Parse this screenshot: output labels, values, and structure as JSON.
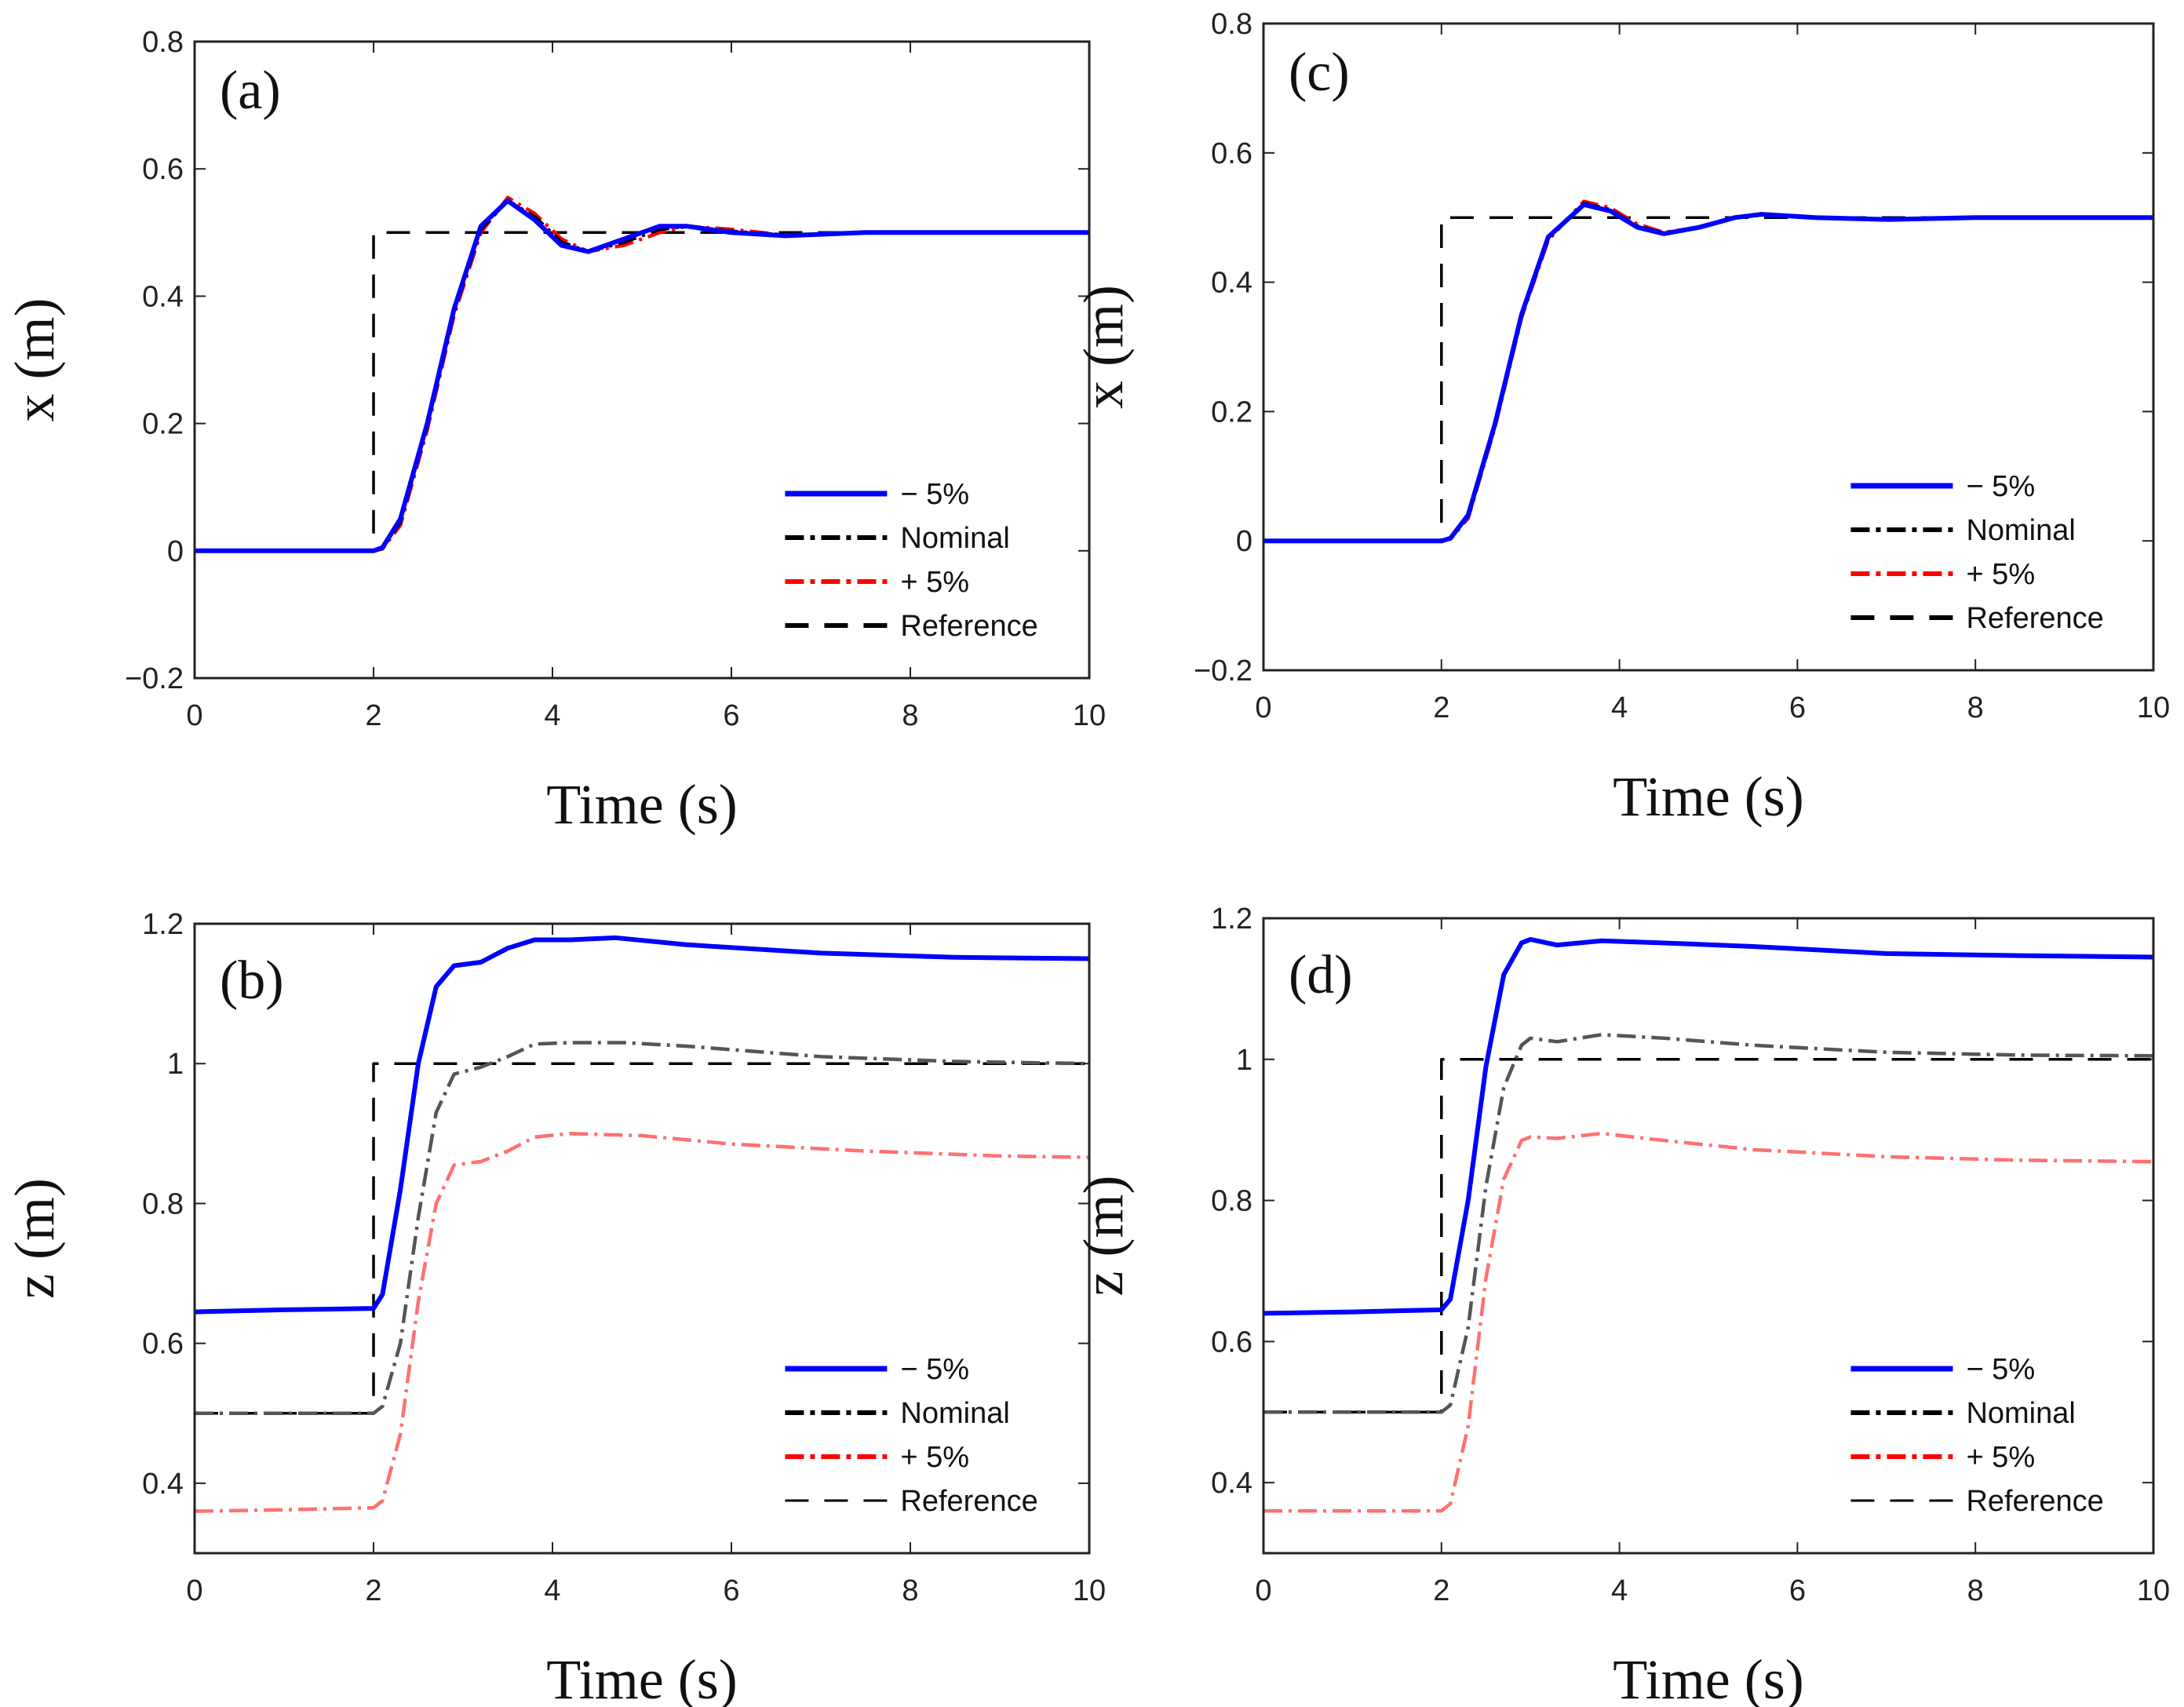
{
  "chart_data": [
    {
      "type": "line",
      "panel_label": "(a)",
      "xlabel": "Time (s)",
      "ylabel": "x (m)",
      "xlim": [
        0,
        10
      ],
      "ylim": [
        -0.2,
        0.8
      ],
      "xticks": [
        "0",
        "2",
        "4",
        "6",
        "8",
        "10"
      ],
      "yticks": [
        "−0.2",
        "0",
        "0.2",
        "0.4",
        "0.6",
        "0.8"
      ],
      "legend_position": "bottom-right",
      "series": [
        {
          "name": "− 5%",
          "color": "#0000ff",
          "style": "solid",
          "x": [
            0,
            2,
            2.1,
            2.3,
            2.6,
            2.9,
            3.2,
            3.5,
            3.8,
            4.1,
            4.4,
            4.8,
            5.2,
            5.5,
            6,
            6.6,
            7.5,
            8.5,
            10
          ],
          "y": [
            0,
            0,
            0.005,
            0.05,
            0.2,
            0.38,
            0.51,
            0.55,
            0.52,
            0.48,
            0.47,
            0.49,
            0.51,
            0.51,
            0.5,
            0.495,
            0.5,
            0.5,
            0.5
          ]
        },
        {
          "name": "Nominal",
          "color": "#000000",
          "style": "dashdot",
          "x": [
            0,
            2,
            2.1,
            2.3,
            2.6,
            2.9,
            3.2,
            3.5,
            3.8,
            4.1,
            4.4,
            4.8,
            5.2,
            5.5,
            6,
            6.6,
            7.5,
            8.5,
            10
          ],
          "y": [
            0,
            0,
            0.004,
            0.045,
            0.195,
            0.375,
            0.505,
            0.55,
            0.525,
            0.485,
            0.47,
            0.485,
            0.505,
            0.51,
            0.502,
            0.496,
            0.5,
            0.5,
            0.5
          ]
        },
        {
          "name": "+ 5%",
          "color": "#ff0000",
          "style": "dashdot",
          "x": [
            0,
            2,
            2.1,
            2.3,
            2.6,
            2.9,
            3.2,
            3.5,
            3.8,
            4.1,
            4.4,
            4.8,
            5.2,
            5.5,
            6,
            6.6,
            7.5,
            8.5,
            10
          ],
          "y": [
            0,
            0,
            0.003,
            0.04,
            0.19,
            0.37,
            0.5,
            0.555,
            0.53,
            0.49,
            0.47,
            0.48,
            0.5,
            0.51,
            0.505,
            0.496,
            0.5,
            0.5,
            0.5
          ]
        },
        {
          "name": "Reference",
          "color": "#000000",
          "style": "dashed",
          "x": [
            0,
            2,
            2,
            10
          ],
          "y": [
            0,
            0,
            0.5,
            0.5
          ]
        }
      ]
    },
    {
      "type": "line",
      "panel_label": "(b)",
      "xlabel": "Time (s)",
      "ylabel": "z (m)",
      "xlim": [
        0,
        10
      ],
      "ylim": [
        0.3,
        1.2
      ],
      "xticks": [
        "0",
        "2",
        "4",
        "6",
        "8",
        "10"
      ],
      "yticks": [
        "0.4",
        "0.6",
        "0.8",
        "1",
        "1.2"
      ],
      "legend_position": "bottom-right",
      "series": [
        {
          "name": "− 5%",
          "color": "#0000ff",
          "style": "solid",
          "x": [
            0,
            1,
            2,
            2.1,
            2.3,
            2.5,
            2.7,
            2.9,
            3.2,
            3.5,
            3.8,
            4.2,
            4.7,
            5.5,
            7,
            8.5,
            10
          ],
          "y": [
            0.645,
            0.648,
            0.65,
            0.67,
            0.82,
            1.0,
            1.11,
            1.14,
            1.145,
            1.165,
            1.177,
            1.177,
            1.18,
            1.17,
            1.158,
            1.152,
            1.15
          ]
        },
        {
          "name": "Nominal",
          "color": "#555555",
          "style": "dashdot",
          "x": [
            0,
            1,
            2,
            2.1,
            2.3,
            2.5,
            2.7,
            2.9,
            3.2,
            3.5,
            3.8,
            4.2,
            4.8,
            5.5,
            7,
            8.5,
            10
          ],
          "y": [
            0.5,
            0.5,
            0.5,
            0.51,
            0.6,
            0.78,
            0.93,
            0.985,
            0.995,
            1.01,
            1.028,
            1.03,
            1.03,
            1.025,
            1.01,
            1.003,
            1.0
          ]
        },
        {
          "name": "+ 5%",
          "color": "#ff7070",
          "style": "dashdot",
          "x": [
            0,
            1,
            2,
            2.1,
            2.3,
            2.5,
            2.7,
            2.9,
            3.2,
            3.5,
            3.8,
            4.2,
            5,
            6,
            7.5,
            9,
            10
          ],
          "y": [
            0.36,
            0.362,
            0.365,
            0.375,
            0.47,
            0.66,
            0.8,
            0.855,
            0.86,
            0.875,
            0.895,
            0.9,
            0.897,
            0.885,
            0.875,
            0.868,
            0.866
          ]
        },
        {
          "name": "Reference",
          "color": "#000000",
          "style": "dashed",
          "x": [
            0,
            2,
            2,
            10
          ],
          "y": [
            0.5,
            0.5,
            1.0,
            1.0
          ]
        }
      ]
    },
    {
      "type": "line",
      "panel_label": "(c)",
      "xlabel": "Time (s)",
      "ylabel": "x (m)",
      "xlim": [
        0,
        10
      ],
      "ylim": [
        -0.2,
        0.8
      ],
      "xticks": [
        "0",
        "2",
        "4",
        "6",
        "8",
        "10"
      ],
      "yticks": [
        "−0.2",
        "0",
        "0.2",
        "0.4",
        "0.6",
        "0.8"
      ],
      "legend_position": "bottom-right",
      "series": [
        {
          "name": "− 5%",
          "color": "#0000ff",
          "style": "solid",
          "x": [
            0,
            2,
            2.1,
            2.3,
            2.6,
            2.9,
            3.2,
            3.6,
            3.9,
            4.2,
            4.5,
            4.9,
            5.3,
            5.6,
            6.2,
            7,
            8,
            10
          ],
          "y": [
            0,
            0,
            0.004,
            0.04,
            0.18,
            0.35,
            0.47,
            0.52,
            0.51,
            0.485,
            0.475,
            0.485,
            0.5,
            0.505,
            0.5,
            0.497,
            0.5,
            0.5
          ]
        },
        {
          "name": "Nominal",
          "color": "#000000",
          "style": "dashdot",
          "x": [
            0,
            2,
            2.1,
            2.3,
            2.6,
            2.9,
            3.2,
            3.6,
            3.9,
            4.2,
            4.5,
            4.9,
            5.3,
            5.6,
            6.2,
            7,
            8,
            10
          ],
          "y": [
            0,
            0,
            0.004,
            0.038,
            0.178,
            0.348,
            0.468,
            0.522,
            0.512,
            0.487,
            0.476,
            0.485,
            0.5,
            0.505,
            0.5,
            0.497,
            0.5,
            0.5
          ]
        },
        {
          "name": "+ 5%",
          "color": "#ff0000",
          "style": "dashdot",
          "x": [
            0,
            2,
            2.1,
            2.3,
            2.6,
            2.9,
            3.2,
            3.6,
            3.9,
            4.2,
            4.5,
            4.9,
            5.3,
            5.6,
            6.2,
            7,
            8,
            10
          ],
          "y": [
            0,
            0,
            0.003,
            0.035,
            0.175,
            0.345,
            0.465,
            0.525,
            0.515,
            0.49,
            0.477,
            0.485,
            0.5,
            0.506,
            0.5,
            0.497,
            0.5,
            0.5
          ]
        },
        {
          "name": "Reference",
          "color": "#000000",
          "style": "dashed",
          "x": [
            0,
            2,
            2,
            10
          ],
          "y": [
            0,
            0,
            0.5,
            0.5
          ]
        }
      ]
    },
    {
      "type": "line",
      "panel_label": "(d)",
      "xlabel": "Time (s)",
      "ylabel": "z (m)",
      "xlim": [
        0,
        10
      ],
      "ylim": [
        0.3,
        1.2
      ],
      "xticks": [
        "0",
        "2",
        "4",
        "6",
        "8",
        "10"
      ],
      "yticks": [
        "0.4",
        "0.6",
        "0.8",
        "1",
        "1.2"
      ],
      "legend_position": "bottom-right",
      "series": [
        {
          "name": "− 5%",
          "color": "#0000ff",
          "style": "solid",
          "x": [
            0,
            1,
            2,
            2.1,
            2.3,
            2.5,
            2.7,
            2.9,
            3.0,
            3.3,
            3.8,
            4.5,
            5.5,
            7,
            8.5,
            10
          ],
          "y": [
            0.64,
            0.642,
            0.645,
            0.66,
            0.8,
            0.99,
            1.12,
            1.165,
            1.17,
            1.162,
            1.168,
            1.165,
            1.16,
            1.15,
            1.147,
            1.145
          ]
        },
        {
          "name": "Nominal",
          "color": "#555555",
          "style": "dashdot",
          "x": [
            0,
            1,
            2,
            2.1,
            2.3,
            2.5,
            2.7,
            2.9,
            3.0,
            3.3,
            3.8,
            4.5,
            5.5,
            7,
            8.5,
            10
          ],
          "y": [
            0.5,
            0.5,
            0.5,
            0.51,
            0.62,
            0.82,
            0.96,
            1.02,
            1.03,
            1.025,
            1.035,
            1.03,
            1.02,
            1.01,
            1.006,
            1.005
          ]
        },
        {
          "name": "+ 5%",
          "color": "#ff7070",
          "style": "dashdot",
          "x": [
            0,
            1,
            2,
            2.1,
            2.3,
            2.5,
            2.7,
            2.9,
            3.0,
            3.3,
            3.8,
            4.5,
            5.5,
            7,
            8.5,
            10
          ],
          "y": [
            0.36,
            0.36,
            0.36,
            0.37,
            0.48,
            0.69,
            0.83,
            0.885,
            0.89,
            0.888,
            0.895,
            0.885,
            0.872,
            0.862,
            0.857,
            0.855
          ]
        },
        {
          "name": "Reference",
          "color": "#000000",
          "style": "dashed",
          "x": [
            0,
            2,
            2,
            10
          ],
          "y": [
            0.5,
            0.5,
            1.0,
            1.0
          ]
        }
      ]
    }
  ]
}
